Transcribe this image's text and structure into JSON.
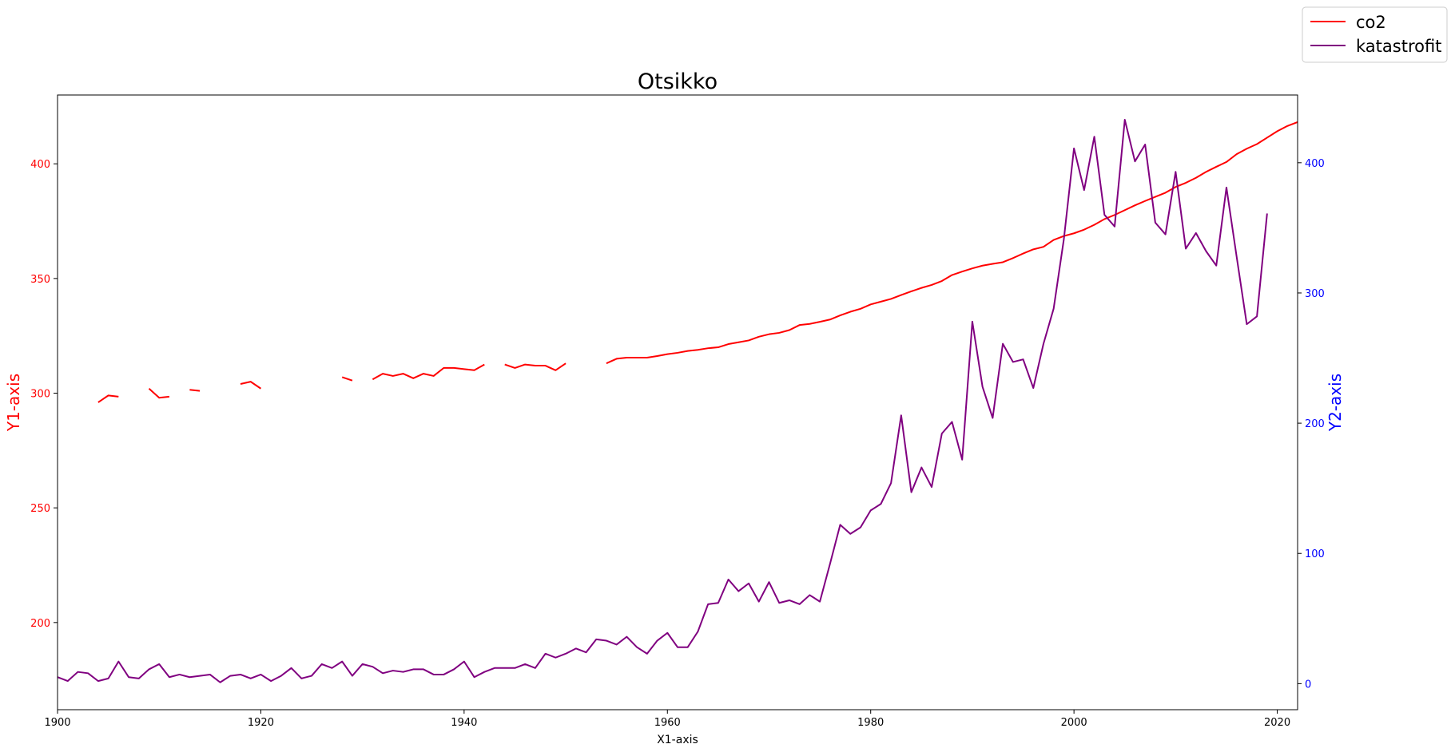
{
  "chart_data": {
    "type": "line",
    "title": "Otsikko",
    "xlabel": "X1-axis",
    "y1label": "Y1-axis",
    "y2label": "Y2-axis",
    "xlim": [
      1900,
      2022
    ],
    "y1lim": [
      162,
      430
    ],
    "y2lim": [
      -20,
      452
    ],
    "x_ticks": [
      1900,
      1920,
      1940,
      1960,
      1980,
      2000,
      2020
    ],
    "y1_ticks": [
      200,
      250,
      300,
      350,
      400
    ],
    "y2_ticks": [
      0,
      100,
      200,
      300,
      400
    ],
    "legend_position": "top-right (outside plot)",
    "grid": false,
    "colors": {
      "co2": "#ff0000",
      "katastrofit": "#800080",
      "y1_axis": "#ff0000",
      "y2_axis": "#0000ff"
    },
    "series": [
      {
        "name": "co2",
        "axis": "y1",
        "x": [
          1904,
          1905,
          1906,
          1907,
          1908,
          1909,
          1910,
          1911,
          1912,
          1913,
          1914,
          1915,
          1916,
          1917,
          1918,
          1919,
          1920,
          1921,
          1922,
          1923,
          1924,
          1925,
          1926,
          1927,
          1928,
          1929,
          1930,
          1931,
          1932,
          1933,
          1934,
          1935,
          1936,
          1937,
          1938,
          1939,
          1940,
          1941,
          1942,
          1943,
          1944,
          1945,
          1946,
          1947,
          1948,
          1949,
          1950,
          1951,
          1952,
          1953,
          1954,
          1955,
          1956,
          1957,
          1958,
          1959,
          1960,
          1961,
          1962,
          1963,
          1964,
          1965,
          1966,
          1967,
          1968,
          1969,
          1970,
          1971,
          1972,
          1973,
          1974,
          1975,
          1976,
          1977,
          1978,
          1979,
          1980,
          1981,
          1982,
          1983,
          1984,
          1985,
          1986,
          1987,
          1988,
          1989,
          1990,
          1991,
          1992,
          1993,
          1994,
          1995,
          1996,
          1997,
          1998,
          1999,
          2000,
          2001,
          2002,
          2003,
          2004,
          2005,
          2006,
          2007,
          2008,
          2009,
          2010,
          2011,
          2012,
          2013,
          2014,
          2015,
          2016,
          2017,
          2018,
          2019,
          2020,
          2021,
          2022
        ],
        "y": [
          296,
          299,
          298.5,
          null,
          null,
          302,
          298,
          298.5,
          null,
          301.5,
          301,
          null,
          null,
          null,
          304,
          305,
          302,
          null,
          null,
          null,
          null,
          null,
          null,
          null,
          307,
          305.5,
          null,
          306,
          308.5,
          307.5,
          308.5,
          306.5,
          308.5,
          307.5,
          311,
          311,
          310.5,
          310,
          312.5,
          null,
          312.5,
          311,
          312.5,
          312,
          312,
          310,
          313,
          null,
          null,
          null,
          313,
          315,
          315.5,
          315.5,
          315.5,
          316.2,
          317,
          317.6,
          318.4,
          318.9,
          319.6,
          320,
          321.4,
          322.2,
          323,
          324.6,
          325.7,
          326.3,
          327.5,
          329.7,
          330.2,
          331.1,
          332.1,
          333.9,
          335.5,
          336.8,
          338.7,
          339.9,
          341.1,
          342.8,
          344.4,
          345.9,
          347.2,
          348.9,
          351.5,
          353,
          354.4,
          355.6,
          356.4,
          357.1,
          358.9,
          360.9,
          362.7,
          363.8,
          366.8,
          368.5,
          369.7,
          371.3,
          373.4,
          375.9,
          377.7,
          379.8,
          381.9,
          383.8,
          385.6,
          387.4,
          389.9,
          391.7,
          393.9,
          396.5,
          398.7,
          400.8,
          404.2,
          406.6,
          408.6,
          411.4,
          414.2,
          416.5,
          418.2
        ]
      },
      {
        "name": "katastrofit",
        "axis": "y2",
        "x": [
          1900,
          1901,
          1902,
          1903,
          1904,
          1905,
          1906,
          1907,
          1908,
          1909,
          1910,
          1911,
          1912,
          1913,
          1914,
          1915,
          1916,
          1917,
          1918,
          1919,
          1920,
          1921,
          1922,
          1923,
          1924,
          1925,
          1926,
          1927,
          1928,
          1929,
          1930,
          1931,
          1932,
          1933,
          1934,
          1935,
          1936,
          1937,
          1938,
          1939,
          1940,
          1941,
          1942,
          1943,
          1944,
          1945,
          1946,
          1947,
          1948,
          1949,
          1950,
          1951,
          1952,
          1953,
          1954,
          1955,
          1956,
          1957,
          1958,
          1959,
          1960,
          1961,
          1962,
          1963,
          1964,
          1965,
          1966,
          1967,
          1968,
          1969,
          1970,
          1971,
          1972,
          1973,
          1974,
          1975,
          1976,
          1977,
          1978,
          1979,
          1980,
          1981,
          1982,
          1983,
          1984,
          1985,
          1986,
          1987,
          1988,
          1989,
          1990,
          1991,
          1992,
          1993,
          1994,
          1995,
          1996,
          1997,
          1998,
          1999,
          2000,
          2001,
          2002,
          2003,
          2004,
          2005,
          2006,
          2007,
          2008,
          2009,
          2010,
          2011,
          2012,
          2013,
          2014,
          2015,
          2016,
          2017,
          2018,
          2019
        ],
        "y": [
          5,
          2,
          9,
          8,
          2,
          4,
          17,
          5,
          4,
          11,
          15,
          5,
          7,
          5,
          6,
          7,
          1,
          6,
          7,
          4,
          7,
          2,
          6,
          12,
          4,
          6,
          15,
          12,
          17,
          6,
          15,
          13,
          8,
          10,
          9,
          11,
          11,
          7,
          7,
          11,
          17,
          5,
          9,
          12,
          12,
          12,
          15,
          12,
          23,
          20,
          23,
          27,
          24,
          34,
          33,
          30,
          36,
          28,
          23,
          33,
          39,
          28,
          28,
          40,
          61,
          62,
          80,
          71,
          77,
          63,
          78,
          62,
          64,
          61,
          68,
          63,
          92,
          122,
          115,
          120,
          133,
          138,
          154,
          206,
          147,
          166,
          151,
          192,
          201,
          172,
          278,
          228,
          204,
          261,
          247,
          249,
          227,
          261,
          288,
          341,
          411,
          379,
          420,
          360,
          351,
          433,
          401,
          414,
          354,
          345,
          393,
          334,
          346,
          332,
          321,
          381,
          328,
          276,
          282,
          361
        ]
      }
    ]
  }
}
